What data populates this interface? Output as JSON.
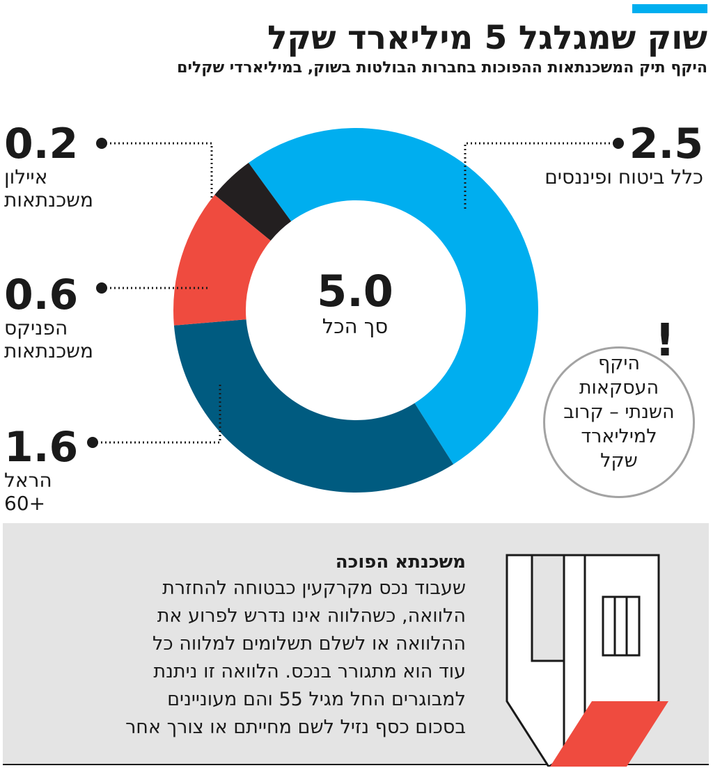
{
  "header": {
    "title": "שוק שמגלגל 5 מיליארד שקל",
    "subtitle": "היקף תיק המשכנתאות ההפוכות בחברות הבולטות בשוק, במיליארדי שקלים",
    "accent_color": "#00aeef"
  },
  "chart_data": {
    "type": "pie",
    "title": "שוק שמגלגל 5 מיליארד שקל",
    "subtitle": "היקף תיק המשכנתאות ההפוכות בחברות הבולטות בשוק, במיליארדי שקלים",
    "total": {
      "value": "5.0",
      "label": "סך הכל"
    },
    "slices": [
      {
        "label": "כלל ביטוח ופיננסים",
        "value": 2.5,
        "display": "2.5",
        "color": "#00aeef"
      },
      {
        "label": "הראל +60",
        "value": 1.6,
        "display": "1.6",
        "color": "#005b80"
      },
      {
        "label": "הפניקס משכנתאות",
        "value": 0.6,
        "display": "0.6",
        "color": "#ef4b3f"
      },
      {
        "label": "איילון משכנתאות",
        "value": 0.2,
        "display": "0.2",
        "color": "#231f20"
      }
    ]
  },
  "note": {
    "mark": "!",
    "text": "היקף\nהעסקאות\nהשנתי – קרוב\nלמיליארד\nשקל"
  },
  "definition": {
    "title": "משכנתא הפוכה",
    "body": "שעבוד נכס מקרקעין כבטוחה להחזרת\nהלוואה, כשהלווה אינו נדרש לפרוע את\nההלוואה או לשלם תשלומים למלווה כל\nעוד הוא מתגורר בנכס. הלוואה זו ניתנת\nלמבוגרים החל מגיל 55 והם מעוניינים\nבסכום כסף נזיל לשם מחייתם או צורך אחר"
  }
}
